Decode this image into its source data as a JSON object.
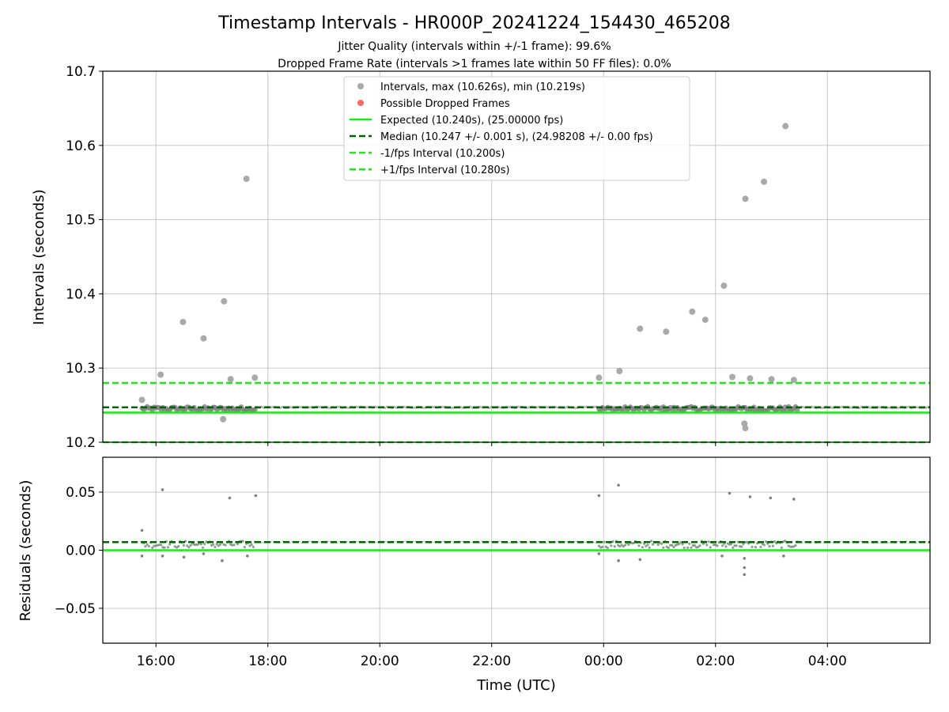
{
  "figure": {
    "title": "Timestamp Intervals - HR000P_20241224_154430_465208",
    "subtitle_line1": "Jitter Quality (intervals within +/-1 frame): 99.6%",
    "subtitle_line2": "Dropped Frame Rate (intervals >1 frames late within 50 FF files): 0.0%",
    "xlabel": "Time (UTC)"
  },
  "colors": {
    "points": "#808080",
    "points_light": "#a9a9a9",
    "dropped": "#ff6666",
    "expected": "#18e818",
    "median": "#006400",
    "fps_bounds": "#1ee81e",
    "grid": "#b0b0b0"
  },
  "chart_data": [
    {
      "type": "scatter",
      "ylabel": "Intervals (seconds)",
      "xlim": [
        "15:03",
        "05:50"
      ],
      "ylim": [
        10.2,
        10.7
      ],
      "yticks": [
        10.2,
        10.3,
        10.4,
        10.5,
        10.6,
        10.7
      ],
      "ytick_labels": [
        "10.2",
        "10.3",
        "10.4",
        "10.5",
        "10.6",
        "10.7"
      ],
      "xticks": [
        "16:00",
        "18:00",
        "20:00",
        "22:00",
        "00:00",
        "02:00",
        "04:00"
      ],
      "grid": true,
      "legend_position": "top-center",
      "legend": [
        "Intervals, max (10.626s), min (10.219s)",
        "Possible Dropped Frames",
        "Expected (10.240s), (25.00000 fps)",
        "Median (10.247 +/- 0.001 s), (24.98208 +/- 0.00 fps)",
        "-1/fps Interval (10.200s)",
        "+1/fps Interval (10.280s)"
      ],
      "reference_lines": {
        "expected": 10.24,
        "median": 10.247,
        "minus_fps": 10.2,
        "plus_fps": 10.28
      },
      "outliers": [
        {
          "x": "15:45",
          "y": 10.257
        },
        {
          "x": "16:05",
          "y": 10.291
        },
        {
          "x": "16:29",
          "y": 10.362
        },
        {
          "x": "16:51",
          "y": 10.34
        },
        {
          "x": "17:13",
          "y": 10.39
        },
        {
          "x": "17:20",
          "y": 10.285
        },
        {
          "x": "17:37",
          "y": 10.555
        },
        {
          "x": "17:46",
          "y": 10.287
        },
        {
          "x": "17:12",
          "y": 10.231
        },
        {
          "x": "23:55",
          "y": 10.287
        },
        {
          "x": "00:17",
          "y": 10.296
        },
        {
          "x": "00:39",
          "y": 10.353
        },
        {
          "x": "01:07",
          "y": 10.349
        },
        {
          "x": "01:35",
          "y": 10.376
        },
        {
          "x": "01:49",
          "y": 10.365
        },
        {
          "x": "02:09",
          "y": 10.411
        },
        {
          "x": "02:18",
          "y": 10.288
        },
        {
          "x": "02:32",
          "y": 10.528
        },
        {
          "x": "02:32",
          "y": 10.219
        },
        {
          "x": "02:31",
          "y": 10.225
        },
        {
          "x": "02:37",
          "y": 10.286
        },
        {
          "x": "02:52",
          "y": 10.551
        },
        {
          "x": "03:00",
          "y": 10.285
        },
        {
          "x": "03:15",
          "y": 10.626
        },
        {
          "x": "03:24",
          "y": 10.284
        }
      ]
    },
    {
      "type": "scatter",
      "ylabel": "Residuals (seconds)",
      "xlim": [
        "15:03",
        "05:50"
      ],
      "ylim": [
        -0.08,
        0.08
      ],
      "yticks": [
        0.05,
        0.0,
        -0.05
      ],
      "ytick_labels": [
        "0.05",
        "0.00",
        "−0.05"
      ],
      "xticks": [
        "16:00",
        "18:00",
        "20:00",
        "22:00",
        "00:00",
        "02:00",
        "04:00"
      ],
      "grid": true,
      "reference_lines": {
        "zero": 0.0,
        "median": 0.007
      },
      "outliers": [
        {
          "x": "15:45",
          "y": 0.017
        },
        {
          "x": "15:45",
          "y": -0.005
        },
        {
          "x": "16:07",
          "y": 0.052
        },
        {
          "x": "16:07",
          "y": -0.005
        },
        {
          "x": "16:30",
          "y": -0.006
        },
        {
          "x": "16:51",
          "y": -0.003
        },
        {
          "x": "17:11",
          "y": -0.009
        },
        {
          "x": "17:19",
          "y": 0.045
        },
        {
          "x": "17:38",
          "y": -0.005
        },
        {
          "x": "17:47",
          "y": 0.047
        },
        {
          "x": "23:55",
          "y": 0.047
        },
        {
          "x": "23:55",
          "y": -0.003
        },
        {
          "x": "00:16",
          "y": 0.056
        },
        {
          "x": "00:16",
          "y": -0.009
        },
        {
          "x": "00:39",
          "y": -0.008
        },
        {
          "x": "02:07",
          "y": -0.005
        },
        {
          "x": "02:15",
          "y": 0.049
        },
        {
          "x": "02:31",
          "y": -0.015
        },
        {
          "x": "02:31",
          "y": -0.021
        },
        {
          "x": "02:31",
          "y": -0.007
        },
        {
          "x": "02:37",
          "y": 0.046
        },
        {
          "x": "02:59",
          "y": 0.045
        },
        {
          "x": "03:13",
          "y": -0.005
        },
        {
          "x": "03:24",
          "y": 0.044
        }
      ]
    }
  ]
}
